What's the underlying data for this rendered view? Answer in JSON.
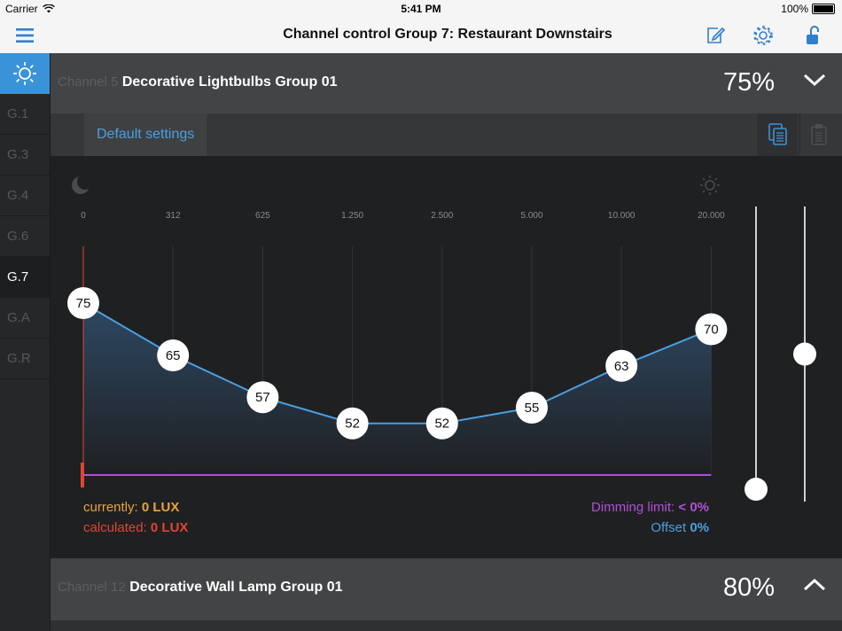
{
  "status_bar": {
    "carrier": "Carrier",
    "time": "5:41 PM",
    "battery": "100%"
  },
  "navbar": {
    "title": "Channel control Group 7: Restaurant Downstairs"
  },
  "sidebar": {
    "items": [
      {
        "label": "G.1",
        "active": false
      },
      {
        "label": "G.3",
        "active": false
      },
      {
        "label": "G.4",
        "active": false
      },
      {
        "label": "G.6",
        "active": false
      },
      {
        "label": "G.7",
        "active": true
      },
      {
        "label": "G.A",
        "active": false
      },
      {
        "label": "G.R",
        "active": false
      }
    ]
  },
  "channels": [
    {
      "number_label": "Channel 5",
      "name": "Decorative Lightbulbs Group 01",
      "percent": "75%",
      "expanded": true
    },
    {
      "number_label": "Channel 12",
      "name": "Decorative Wall Lamp Group 01",
      "percent": "80%",
      "expanded": false
    }
  ],
  "tabs": {
    "default_label": "Default settings"
  },
  "chart_data": {
    "type": "area",
    "x": [
      "0",
      "312",
      "625",
      "1.250",
      "2.500",
      "5.000",
      "10.000",
      "20.000"
    ],
    "values": [
      75,
      65,
      57,
      52,
      52,
      55,
      63,
      70
    ],
    "ylim": [
      0,
      100
    ],
    "dimming_limit_line": 0,
    "current_marker": 0,
    "colors": {
      "line": "#4a9fe0",
      "limit": "#b14fd6",
      "current": "#e0452f"
    }
  },
  "readouts": {
    "currently_label": "currently:",
    "currently_value": "0 LUX",
    "calculated_label": "calculated:",
    "calculated_value": "0 LUX",
    "dimming_label": "Dimming limit:",
    "dimming_value": "< 0%",
    "offset_label": "Offset",
    "offset_value": "0%"
  },
  "sliders": {
    "left_value": 0,
    "right_value": 0.5
  },
  "colors": {
    "accent": "#3a93d8",
    "orange": "#e8a33d",
    "red": "#e0452f",
    "purple": "#b14fd6"
  }
}
